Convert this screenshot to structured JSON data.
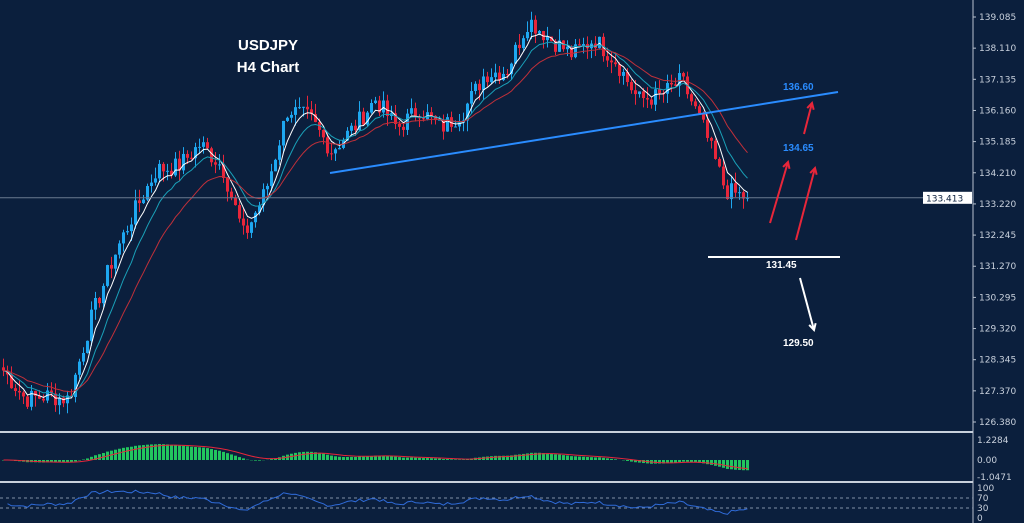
{
  "chart_data": {
    "type": "candlestick",
    "title": "USDJPY",
    "subtitle": "H4 Chart",
    "ylim": [
      126.38,
      139.085
    ],
    "y_ticks": [
      "139.085",
      "138.110",
      "137.135",
      "136.160",
      "135.185",
      "134.210",
      "133.220",
      "132.245",
      "131.270",
      "130.295",
      "129.320",
      "128.345",
      "127.370",
      "126.380"
    ],
    "current_price": "133.413",
    "close_path": [
      128.0,
      127.1,
      127.2,
      127.1,
      129.6,
      131.5,
      133.0,
      134.3,
      134.4,
      135.1,
      134.4,
      132.2,
      133.65,
      136.2,
      135.9,
      134.9,
      135.6,
      136.5,
      135.6,
      136.2,
      135.6,
      136.1,
      137.3,
      137.4,
      139.0,
      138.4,
      137.9,
      138.4,
      137.7,
      136.5,
      136.6,
      137.1,
      135.6,
      133.65,
      133.41
    ],
    "annotations": {
      "resistance_label": "136.60",
      "mid_label": "134.65",
      "support_label": "131.45",
      "target_label": "129.50",
      "support_level": 131.45
    },
    "macd_panel": {
      "ticks": [
        "1.2284",
        "0.00",
        "-1.0471"
      ]
    },
    "rsi_panel": {
      "ticks": [
        "100",
        "70",
        "30",
        "0"
      ]
    },
    "colors": {
      "background": "#0b1f3d",
      "bull": "#1ea7f0",
      "bear": "#e8263a",
      "trend": "#2a8cff",
      "macd": "#22c55e"
    }
  }
}
